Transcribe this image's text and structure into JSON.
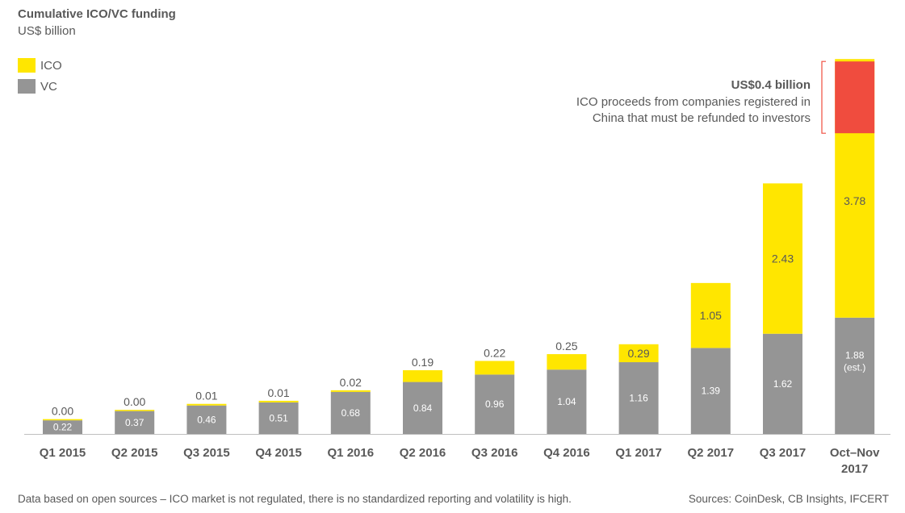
{
  "title": "Cumulative ICO/VC funding",
  "subtitle": "US$ billion",
  "colors": {
    "ico": "#FFE600",
    "vc": "#959595",
    "refund": "#F04C3E",
    "axis": "#BFBFBF",
    "text": "#595959"
  },
  "chart_data": {
    "type": "bar",
    "stacked": true,
    "categories": [
      "Q1 2015",
      "Q2 2015",
      "Q3 2015",
      "Q4 2015",
      "Q1 2016",
      "Q2 2016",
      "Q3 2016",
      "Q4 2016",
      "Q1 2017",
      "Q2 2017",
      "Q3 2017",
      "Oct–Nov 2017"
    ],
    "series": [
      {
        "name": "VC",
        "values": [
          0.22,
          0.37,
          0.46,
          0.51,
          0.68,
          0.84,
          0.96,
          1.04,
          1.16,
          1.39,
          1.62,
          1.88
        ],
        "labels": [
          "0.22",
          "0.37",
          "0.46",
          "0.51",
          "0.68",
          "0.84",
          "0.96",
          "1.04",
          "1.16",
          "1.39",
          "1.62",
          "1.88\n(est.)"
        ]
      },
      {
        "name": "ICO",
        "values": [
          0.0,
          0.0,
          0.01,
          0.01,
          0.02,
          0.19,
          0.22,
          0.25,
          0.29,
          1.05,
          2.43,
          3.78
        ],
        "labels": [
          "0.00",
          "0.00",
          "0.01",
          "0.01",
          "0.02",
          "0.19",
          "0.22",
          "0.25",
          "0.29",
          "1.05",
          "2.43",
          "3.78"
        ]
      }
    ],
    "refund_segment": {
      "category": "Oct–Nov 2017",
      "value": 0.4
    },
    "annotation": {
      "headline": "US$0.4 billion",
      "text_line1": "ICO proceeds from companies registered in",
      "text_line2": "China that must be refunded to investors"
    },
    "legend_placement": "top-left",
    "grid": false
  },
  "footnote": "Data based on open sources – ICO market is not regulated, there is no standardized reporting and volatility is high.",
  "sources": "Sources: CoinDesk, CB Insights, IFCERT"
}
